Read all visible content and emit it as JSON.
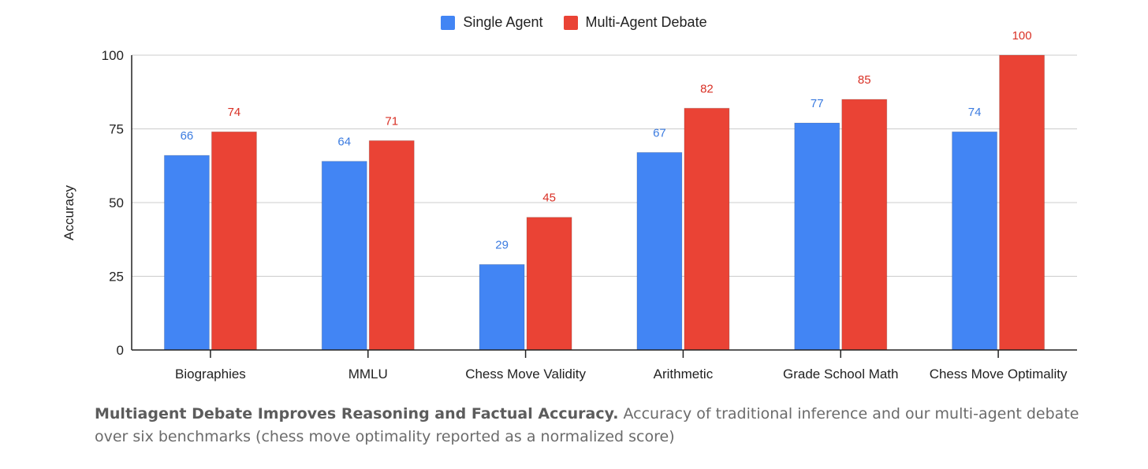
{
  "chart_data": {
    "type": "bar",
    "categories": [
      "Biographies",
      "MMLU",
      "Chess Move Validity",
      "Arithmetic",
      "Grade School Math",
      "Chess Move Optimality"
    ],
    "series": [
      {
        "name": "Single Agent",
        "values": [
          66,
          64,
          29,
          67,
          77,
          74
        ],
        "color": "#4285f4",
        "label_color": "#3b7be0"
      },
      {
        "name": "Multi-Agent Debate",
        "values": [
          74,
          71,
          45,
          82,
          85,
          100
        ],
        "color": "#ea4335",
        "label_color": "#d93025"
      }
    ],
    "ylabel": "Accuracy",
    "ylim": [
      0,
      100
    ],
    "yticks": [
      0,
      25,
      50,
      75,
      100
    ],
    "grid": true,
    "legend_position": "top-center"
  },
  "caption": {
    "bold": "Multiagent Debate Improves Reasoning and Factual Accuracy.",
    "text": " Accuracy of traditional inference and our multi-agent debate over six benchmarks (chess move optimality reported as a normalized score)"
  }
}
